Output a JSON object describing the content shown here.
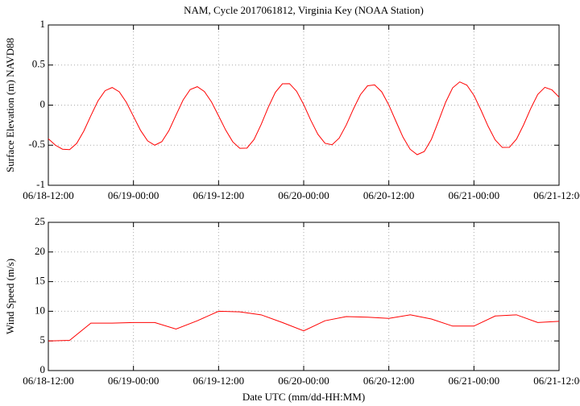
{
  "chart_data": [
    {
      "type": "line",
      "title": "NAM, Cycle 2017061812,  Virginia Key (NOAA Station)",
      "y_label": "Surface Elevation (m) NAVD88",
      "x": [
        "06/18-12:00",
        "06/18-13:00",
        "06/18-14:00",
        "06/18-15:00",
        "06/18-16:00",
        "06/18-17:00",
        "06/18-18:00",
        "06/18-19:00",
        "06/18-20:00",
        "06/18-21:00",
        "06/18-22:00",
        "06/18-23:00",
        "06/19-00:00",
        "06/19-01:00",
        "06/19-02:00",
        "06/19-03:00",
        "06/19-04:00",
        "06/19-05:00",
        "06/19-06:00",
        "06/19-07:00",
        "06/19-08:00",
        "06/19-09:00",
        "06/19-10:00",
        "06/19-11:00",
        "06/19-12:00",
        "06/19-13:00",
        "06/19-14:00",
        "06/19-15:00",
        "06/19-16:00",
        "06/19-17:00",
        "06/19-18:00",
        "06/19-19:00",
        "06/19-20:00",
        "06/19-21:00",
        "06/19-22:00",
        "06/19-23:00",
        "06/20-00:00",
        "06/20-01:00",
        "06/20-02:00",
        "06/20-03:00",
        "06/20-04:00",
        "06/20-05:00",
        "06/20-06:00",
        "06/20-07:00",
        "06/20-08:00",
        "06/20-09:00",
        "06/20-10:00",
        "06/20-11:00",
        "06/20-12:00",
        "06/20-13:00",
        "06/20-14:00",
        "06/20-15:00",
        "06/20-16:00",
        "06/20-17:00",
        "06/20-18:00",
        "06/20-19:00",
        "06/20-20:00",
        "06/20-21:00",
        "06/20-22:00",
        "06/20-23:00",
        "06/21-00:00",
        "06/21-01:00",
        "06/21-02:00",
        "06/21-03:00",
        "06/21-04:00",
        "06/21-05:00",
        "06/21-06:00",
        "06/21-07:00",
        "06/21-08:00",
        "06/21-09:00",
        "06/21-10:00",
        "06/21-11:00",
        "06/21-12:00"
      ],
      "series": [
        {
          "color": "#ff0000",
          "values": [
            -0.42,
            -0.5,
            -0.55,
            -0.555,
            -0.478,
            -0.324,
            -0.131,
            0.053,
            0.18,
            0.22,
            0.166,
            0.035,
            -0.14,
            -0.315,
            -0.446,
            -0.5,
            -0.456,
            -0.318,
            -0.125,
            0.064,
            0.195,
            0.23,
            0.17,
            0.04,
            -0.133,
            -0.311,
            -0.458,
            -0.539,
            -0.536,
            -0.429,
            -0.242,
            -0.028,
            0.159,
            0.266,
            0.268,
            0.173,
            0.007,
            -0.189,
            -0.364,
            -0.476,
            -0.495,
            -0.412,
            -0.248,
            -0.05,
            0.131,
            0.241,
            0.252,
            0.166,
            0.002,
            -0.201,
            -0.4,
            -0.55,
            -0.618,
            -0.579,
            -0.427,
            -0.2,
            0.034,
            0.216,
            0.29,
            0.25,
            0.122,
            -0.064,
            -0.264,
            -0.434,
            -0.528,
            -0.526,
            -0.424,
            -0.246,
            -0.043,
            0.134,
            0.222,
            0.19,
            0.1
          ]
        }
      ],
      "xlim": [
        "06/18-12:00",
        "06/21-12:00"
      ],
      "xticks": [
        "06/18-12:00",
        "06/19-00:00",
        "06/19-12:00",
        "06/20-00:00",
        "06/20-12:00",
        "06/21-00:00",
        "06/21-12:00"
      ],
      "ylim": [
        -1,
        1
      ],
      "yticks": [
        -1,
        -0.5,
        0,
        0.5,
        1
      ],
      "grid": true
    },
    {
      "type": "line",
      "x_label": "Date UTC (mm/dd-HH:MM)",
      "y_label": "Wind Speed (m/s)",
      "x": [
        "06/18-12:00",
        "06/18-15:00",
        "06/18-18:00",
        "06/18-21:00",
        "06/19-00:00",
        "06/19-03:00",
        "06/19-06:00",
        "06/19-09:00",
        "06/19-12:00",
        "06/19-15:00",
        "06/19-18:00",
        "06/19-21:00",
        "06/20-00:00",
        "06/20-03:00",
        "06/20-06:00",
        "06/20-09:00",
        "06/20-12:00",
        "06/20-15:00",
        "06/20-18:00",
        "06/20-21:00",
        "06/21-00:00",
        "06/21-03:00",
        "06/21-06:00",
        "06/21-09:00",
        "06/21-12:00"
      ],
      "series": [
        {
          "color": "#ff0000",
          "values": [
            5.0,
            5.1,
            8.0,
            8.0,
            8.1,
            8.1,
            7.0,
            8.4,
            10.0,
            9.9,
            9.4,
            8.1,
            6.7,
            8.4,
            9.1,
            9.0,
            8.8,
            9.4,
            8.7,
            7.5,
            7.5,
            9.2,
            9.4,
            8.1,
            8.3
          ]
        }
      ],
      "xlim": [
        "06/18-12:00",
        "06/21-12:00"
      ],
      "xticks": [
        "06/18-12:00",
        "06/19-00:00",
        "06/19-12:00",
        "06/20-00:00",
        "06/20-12:00",
        "06/21-00:00",
        "06/21-12:00"
      ],
      "ylim": [
        0,
        25
      ],
      "yticks": [
        0,
        5,
        10,
        15,
        20,
        25
      ],
      "grid": true
    }
  ]
}
